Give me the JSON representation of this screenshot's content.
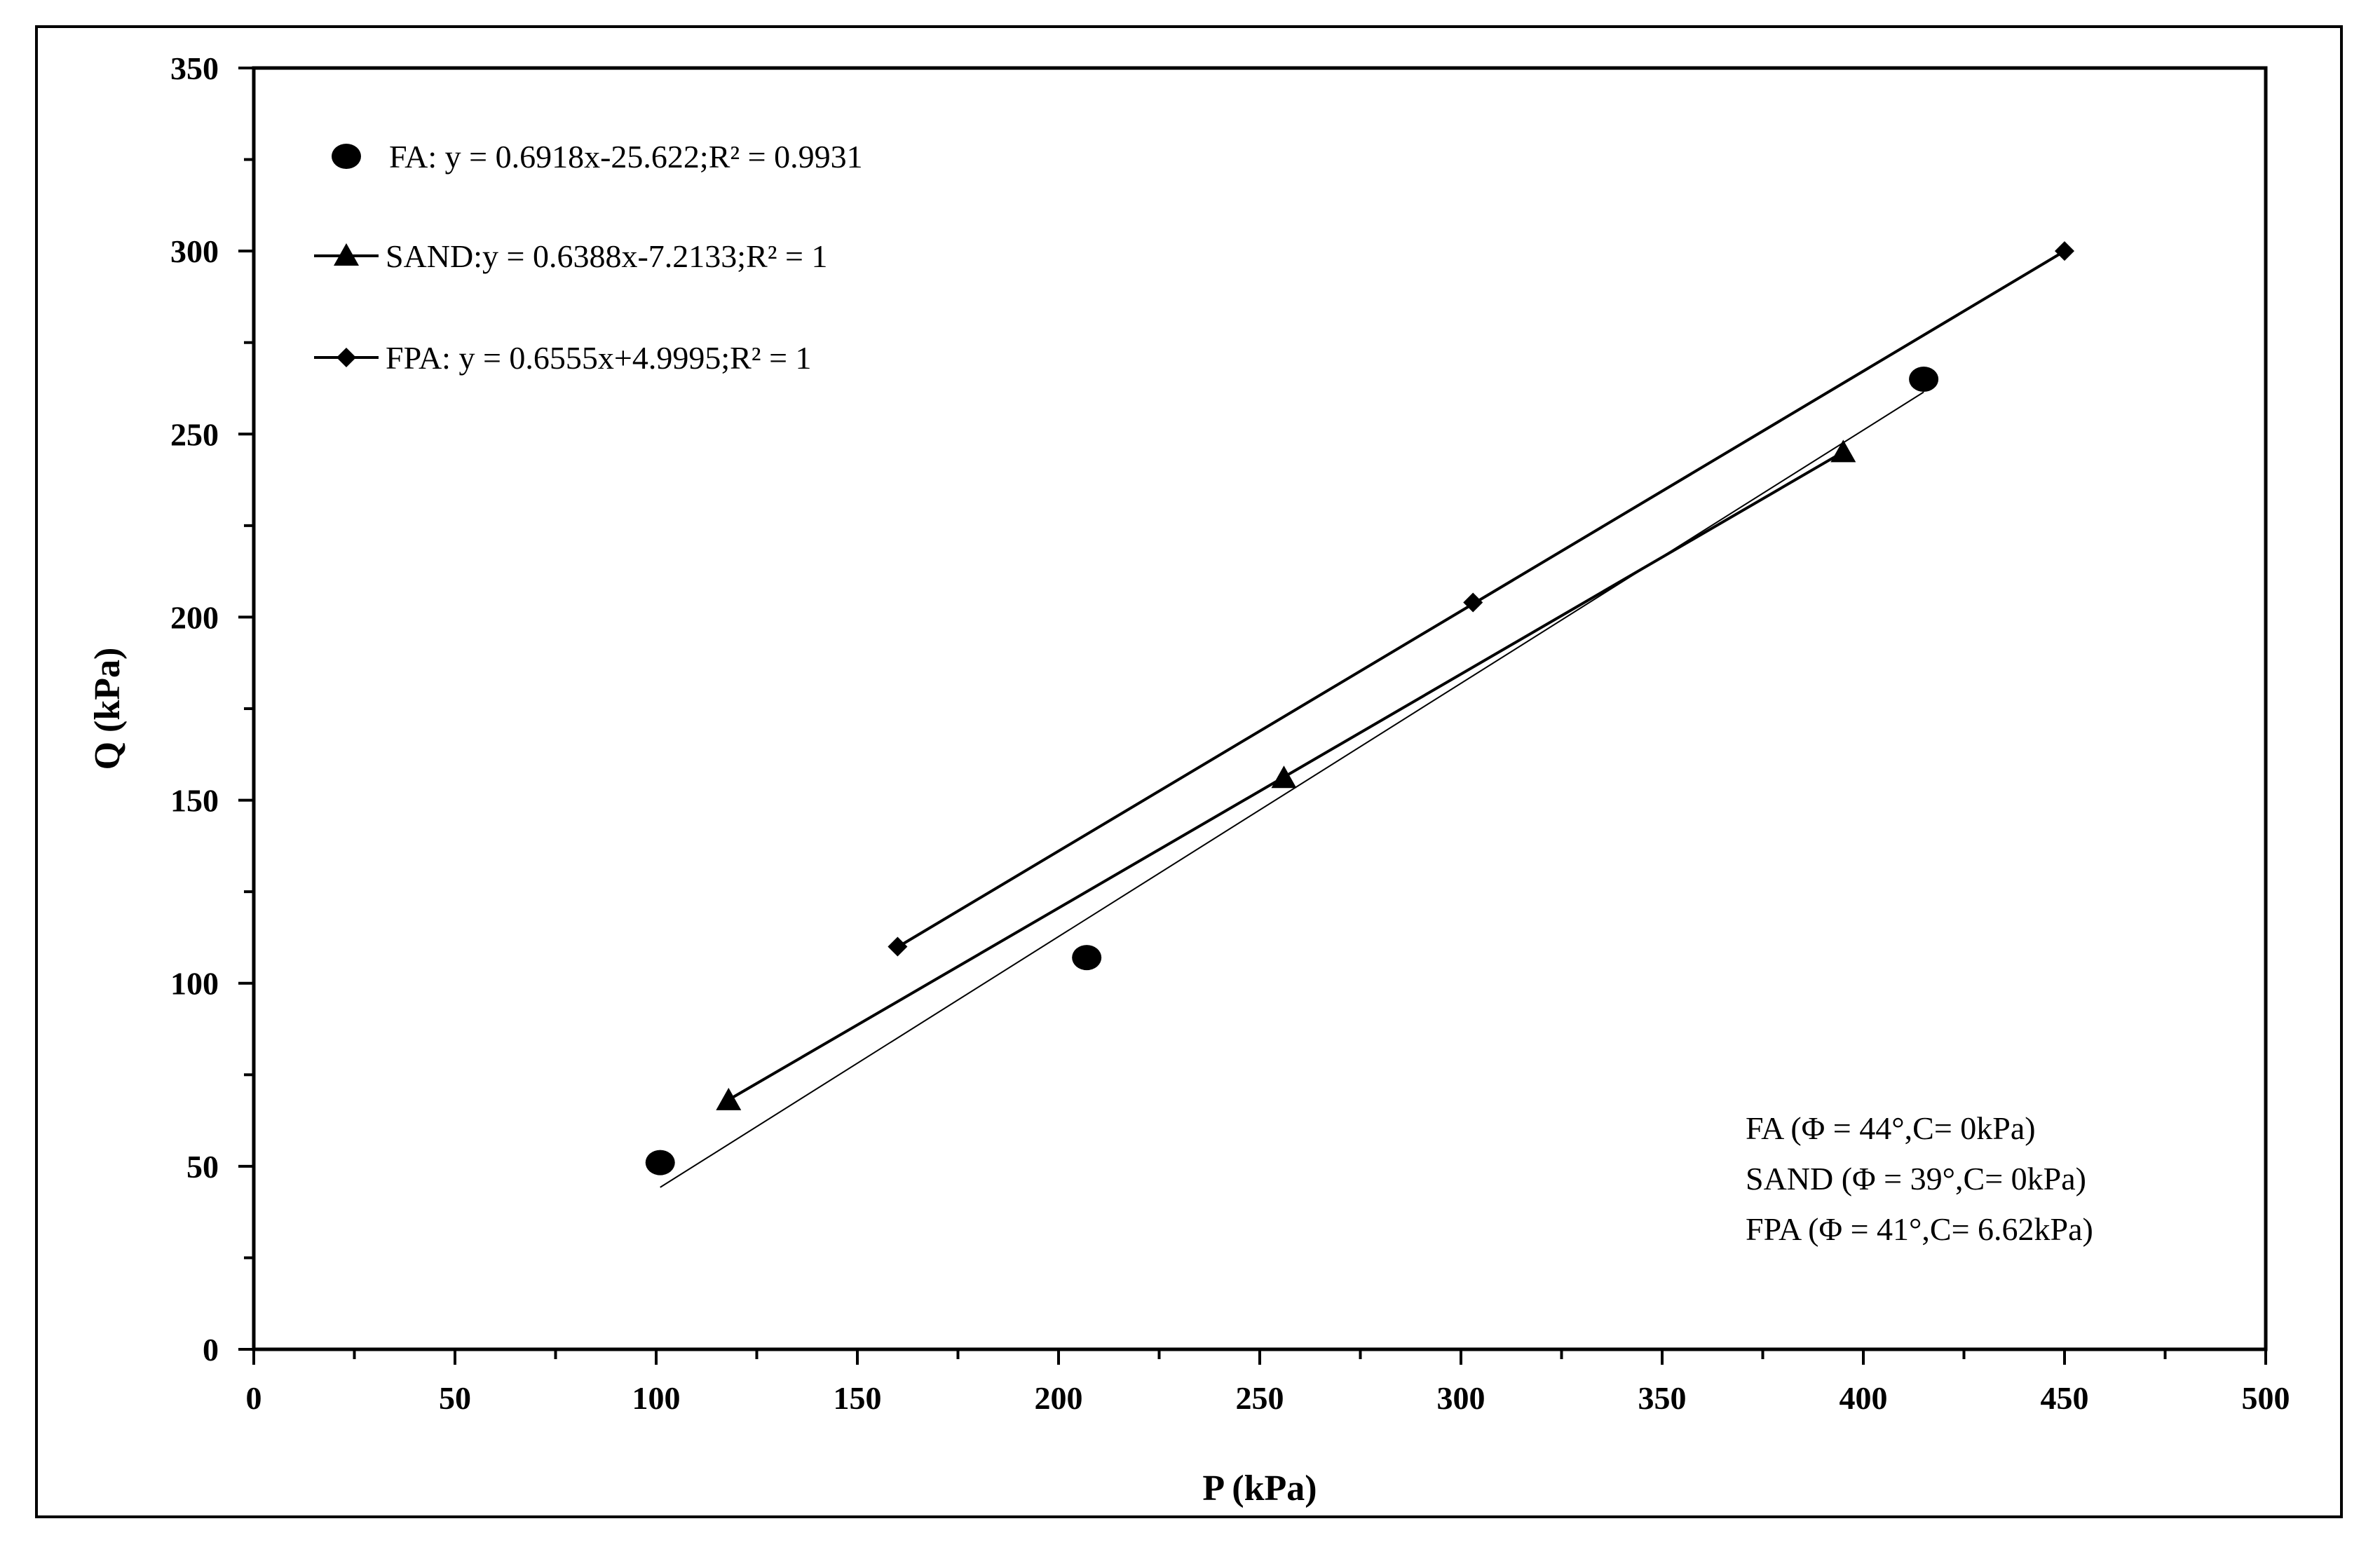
{
  "chart_data": {
    "type": "scatter",
    "xlabel": "P (kPa)",
    "ylabel": "Q (kPa)",
    "xlim": [
      0,
      500
    ],
    "ylim": [
      0,
      350
    ],
    "xticks": [
      0,
      50,
      100,
      150,
      200,
      250,
      300,
      350,
      400,
      450,
      500
    ],
    "yticks": [
      0,
      50,
      100,
      150,
      200,
      250,
      300,
      350
    ],
    "grid": false,
    "legend_position": "top-left",
    "series": [
      {
        "name": "FA: y = 0.6918x-25.622;R² = 0.9931",
        "marker": "circle",
        "x": [
          101,
          207,
          415
        ],
        "y": [
          51,
          107,
          265
        ],
        "trendline": {
          "slope": 0.6918,
          "intercept": -25.622,
          "x_range": [
            101,
            415
          ]
        }
      },
      {
        "name": "SAND:y = 0.6388x-7.2133;R² = 1",
        "marker": "triangle",
        "x": [
          118,
          256,
          395
        ],
        "y": [
          68,
          156,
          245
        ],
        "trendline": {
          "slope": 0.6388,
          "intercept": -7.2133,
          "x_range": [
            118,
            395
          ]
        }
      },
      {
        "name": "FPA: y = 0.6555x+4.9995;R² = 1",
        "marker": "diamond",
        "x": [
          160,
          303,
          450
        ],
        "y": [
          110,
          204,
          300
        ],
        "trendline": {
          "slope": 0.6555,
          "intercept": 4.9995,
          "x_range": [
            160,
            450
          ]
        }
      }
    ],
    "annotations": [
      "FA (Φ   = 44°,C= 0kPa)",
      "SAND (Φ   = 39°,C= 0kPa)",
      "FPA (Φ   = 41°,C= 6.62kPa)"
    ]
  }
}
